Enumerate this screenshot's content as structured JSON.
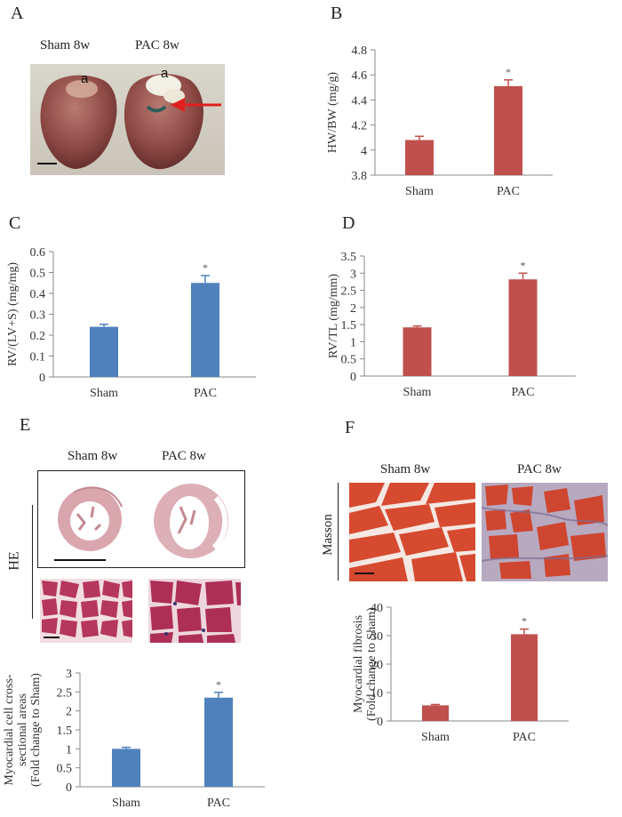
{
  "panels": {
    "A": {
      "letter": "A",
      "sham": "Sham 8w",
      "pac": "PAC 8w",
      "aorta_label": "a"
    },
    "B": {
      "letter": "B"
    },
    "C": {
      "letter": "C"
    },
    "D": {
      "letter": "D"
    },
    "E": {
      "letter": "E",
      "sham": "Sham 8w",
      "pac": "PAC 8w",
      "stain": "HE"
    },
    "F": {
      "letter": "F",
      "sham": "Sham 8w",
      "pac": "PAC 8w",
      "stain": "Masson"
    }
  },
  "chart_data": [
    {
      "id": "B",
      "type": "bar",
      "categories": [
        "Sham",
        "PAC"
      ],
      "values": [
        4.08,
        4.51
      ],
      "errors": [
        0.03,
        0.05
      ],
      "significance": [
        "",
        "*"
      ],
      "ylabel": [
        "HW/BW (mg/g)"
      ],
      "ylim": [
        3.8,
        4.8
      ],
      "yticks": [
        "3.8",
        "4",
        "4.2",
        "4.4",
        "4.6",
        "4.8"
      ],
      "color": "#c0504d"
    },
    {
      "id": "C",
      "type": "bar",
      "categories": [
        "Sham",
        "PAC"
      ],
      "values": [
        0.24,
        0.45
      ],
      "errors": [
        0.012,
        0.035
      ],
      "significance": [
        "",
        "*"
      ],
      "ylabel": [
        "RV/(LV+S) (mg/mg)"
      ],
      "ylim": [
        0,
        0.6
      ],
      "yticks": [
        "0",
        "0.1",
        "0.2",
        "0.3",
        "0.4",
        "0.5",
        "0.6"
      ],
      "color": "#4f81bd"
    },
    {
      "id": "D",
      "type": "bar",
      "categories": [
        "Sham",
        "PAC"
      ],
      "values": [
        1.42,
        2.82
      ],
      "errors": [
        0.04,
        0.18
      ],
      "significance": [
        "",
        "*"
      ],
      "ylabel": [
        "RV/TL (mg/mm)"
      ],
      "ylim": [
        0,
        3.5
      ],
      "yticks": [
        "0",
        "0.5",
        "1",
        "1.5",
        "2",
        "2.5",
        "3",
        "3.5"
      ],
      "color": "#c0504d"
    },
    {
      "id": "E",
      "type": "bar",
      "categories": [
        "Sham",
        "PAC"
      ],
      "values": [
        1.0,
        2.35
      ],
      "errors": [
        0.04,
        0.14
      ],
      "significance": [
        "",
        "*"
      ],
      "ylabel": [
        "Myocardial cell cross-",
        "sectional areas",
        "(Fold change to Sham)"
      ],
      "ylim": [
        0,
        3
      ],
      "yticks": [
        "0",
        "0.5",
        "1",
        "1.5",
        "2",
        "2.5",
        "3"
      ],
      "color": "#4f81bd"
    },
    {
      "id": "F",
      "type": "bar",
      "categories": [
        "Sham",
        "PAC"
      ],
      "values": [
        5.5,
        30.5
      ],
      "errors": [
        0.3,
        1.8
      ],
      "significance": [
        "",
        "*"
      ],
      "ylabel": [
        "Myocardial fibrosis",
        "(Fold change to Sham)"
      ],
      "ylim": [
        0,
        40
      ],
      "yticks": [
        "0",
        "10",
        "20",
        "30",
        "40"
      ],
      "color": "#c0504d"
    }
  ]
}
